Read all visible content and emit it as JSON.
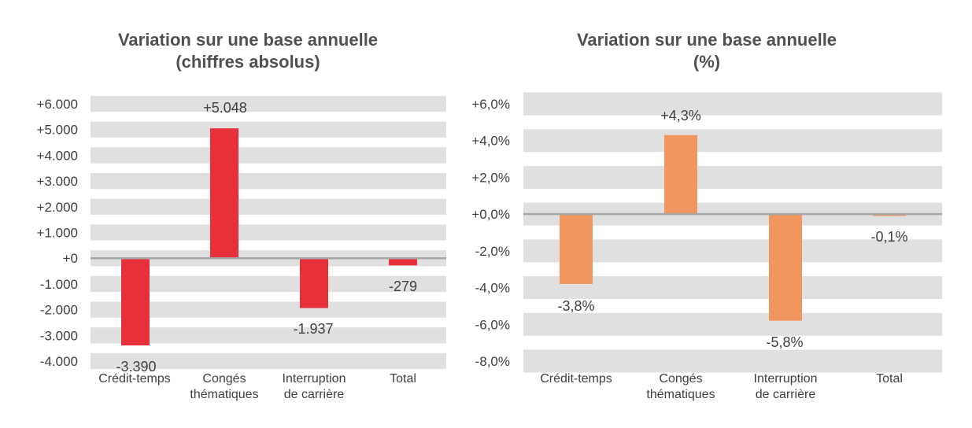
{
  "chart_data": [
    {
      "type": "bar",
      "title": [
        "Variation sur une base annuelle",
        "(chiffres absolus)"
      ],
      "categories": [
        [
          "Crédit-temps"
        ],
        [
          "Congés",
          "thématiques"
        ],
        [
          "Interruption",
          "de carrière"
        ],
        [
          "Total"
        ]
      ],
      "values": [
        -3390,
        5048,
        -1937,
        -279
      ],
      "value_labels": [
        "-3.390",
        "+5.048",
        "-1.937",
        "-279"
      ],
      "ylim": [
        -4000,
        6000
      ],
      "yticks": [
        6000,
        5000,
        4000,
        3000,
        2000,
        1000,
        0,
        -1000,
        -2000,
        -3000,
        -4000
      ],
      "ytick_labels": [
        "+6.000",
        "+5.000",
        "+4.000",
        "+3.000",
        "+2.000",
        "+1.000",
        "+0",
        "-1.000",
        "-2.000",
        "-3.000",
        "-4.000"
      ],
      "bar_color": "#e8303a",
      "grid": "horizontal bands",
      "legend": "none"
    },
    {
      "type": "bar",
      "title": [
        "Variation sur une base annuelle",
        "(%)"
      ],
      "categories": [
        [
          "Crédit-temps"
        ],
        [
          "Congés",
          "thématiques"
        ],
        [
          "Interruption",
          "de carrière"
        ],
        [
          "Total"
        ]
      ],
      "values": [
        -3.8,
        4.3,
        -5.8,
        -0.1
      ],
      "value_labels": [
        "-3,8%",
        "+4,3%",
        "-5,8%",
        "-0,1%"
      ],
      "ylim": [
        -8,
        6
      ],
      "yticks": [
        6,
        4,
        2,
        0,
        -2,
        -4,
        -6,
        -8
      ],
      "ytick_labels": [
        "+6,0%",
        "+4,0%",
        "+2,0%",
        "+0,0%",
        "-2,0%",
        "-4,0%",
        "-6,0%",
        "-8,0%"
      ],
      "bar_color": "#f0965e",
      "grid": "horizontal bands",
      "legend": "none"
    }
  ],
  "colors": {
    "band": "#e0e0e0",
    "zero_line": "#a6a6a6",
    "text": "#404040",
    "title": "#505050"
  }
}
